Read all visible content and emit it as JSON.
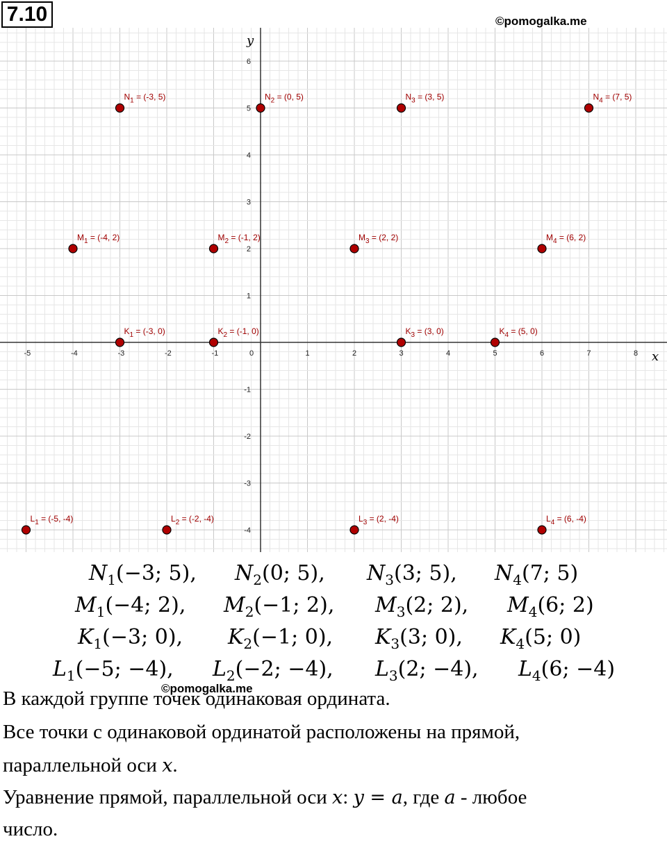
{
  "problem_number": "7.10",
  "watermark": "©pomogalka.me",
  "chart_data": {
    "type": "scatter",
    "xlabel": "x",
    "ylabel": "y",
    "xlim": [
      -5.5,
      8.5
    ],
    "ylim": [
      -4.5,
      6.5
    ],
    "x_ticks": [
      -5,
      -4,
      -3,
      -2,
      -1,
      0,
      1,
      2,
      3,
      4,
      5,
      6,
      7,
      8
    ],
    "y_ticks": [
      -4,
      -3,
      -2,
      -1,
      1,
      2,
      3,
      4,
      5,
      6
    ],
    "grid": true,
    "point_color": "#b00000",
    "label_color": "#a00000",
    "points": [
      {
        "letter": "N",
        "sub": "1",
        "label": " = (-3, 5)",
        "x": -3,
        "y": 5
      },
      {
        "letter": "N",
        "sub": "2",
        "label": " = (0, 5)",
        "x": 0,
        "y": 5
      },
      {
        "letter": "N",
        "sub": "3",
        "label": " = (3, 5)",
        "x": 3,
        "y": 5
      },
      {
        "letter": "N",
        "sub": "4",
        "label": " = (7, 5)",
        "x": 7,
        "y": 5
      },
      {
        "letter": "M",
        "sub": "1",
        "label": " = (-4, 2)",
        "x": -4,
        "y": 2
      },
      {
        "letter": "M",
        "sub": "2",
        "label": " = (-1, 2)",
        "x": -1,
        "y": 2
      },
      {
        "letter": "M",
        "sub": "3",
        "label": " = (2, 2)",
        "x": 2,
        "y": 2
      },
      {
        "letter": "M",
        "sub": "4",
        "label": " = (6, 2)",
        "x": 6,
        "y": 2
      },
      {
        "letter": "K",
        "sub": "1",
        "label": " = (-3, 0)",
        "x": -3,
        "y": 0
      },
      {
        "letter": "K",
        "sub": "2",
        "label": " = (-1, 0)",
        "x": -1,
        "y": 0
      },
      {
        "letter": "K",
        "sub": "3",
        "label": " = (3, 0)",
        "x": 3,
        "y": 0
      },
      {
        "letter": "K",
        "sub": "4",
        "label": " = (5, 0)",
        "x": 5,
        "y": 0
      },
      {
        "letter": "L",
        "sub": "1",
        "label": " = (-5, -4)",
        "x": -5,
        "y": -4
      },
      {
        "letter": "L",
        "sub": "2",
        "label": " = (-2, -4)",
        "x": -2,
        "y": -4
      },
      {
        "letter": "L",
        "sub": "3",
        "label": " = (2, -4)",
        "x": 2,
        "y": -4
      },
      {
        "letter": "L",
        "sub": "4",
        "label": " = (6, -4)",
        "x": 6,
        "y": -4
      }
    ]
  },
  "coordinate_rows": [
    [
      {
        "name": "N",
        "sub": "1",
        "coords": "(−3; 5),"
      },
      {
        "name": "N",
        "sub": "2",
        "coords": "(0; 5),"
      },
      {
        "name": "N",
        "sub": "3",
        "coords": "(3; 5),"
      },
      {
        "name": "N",
        "sub": "4",
        "coords": "(7; 5)"
      }
    ],
    [
      {
        "name": "M",
        "sub": "1",
        "coords": "(−4; 2),"
      },
      {
        "name": "M",
        "sub": "2",
        "coords": "(−1; 2),"
      },
      {
        "name": "M",
        "sub": "3",
        "coords": "(2; 2),"
      },
      {
        "name": "M",
        "sub": "4",
        "coords": "(6; 2)"
      }
    ],
    [
      {
        "name": "K",
        "sub": "1",
        "coords": "(−3; 0),"
      },
      {
        "name": "K",
        "sub": "2",
        "coords": "(−1; 0),"
      },
      {
        "name": "K",
        "sub": "3",
        "coords": "(3; 0),"
      },
      {
        "name": "K",
        "sub": "4",
        "coords": "(5; 0)"
      }
    ],
    [
      {
        "name": "L",
        "sub": "1",
        "coords": "(−5; −4),"
      },
      {
        "name": "L",
        "sub": "2",
        "coords": "(−2; −4),"
      },
      {
        "name": "L",
        "sub": "3",
        "coords": "(2; −4),"
      },
      {
        "name": "L",
        "sub": "4",
        "coords": "(6; −4)"
      }
    ]
  ],
  "text": {
    "line1": "В каждой группе точек одинаковая ордината.",
    "line2": "Все точки с одинаковой ординатой расположены на прямой,",
    "line3_a": "параллельной оси ",
    "line3_var": "x",
    "line3_b": ".",
    "line4_a": "Уравнение прямой, параллельной оси ",
    "line4_var": "x",
    "line4_b": ":  ",
    "line4_eq": "y = a",
    "line4_c": ", где ",
    "line4_var2": "a",
    "line4_d": " - любое",
    "line5": "число."
  }
}
